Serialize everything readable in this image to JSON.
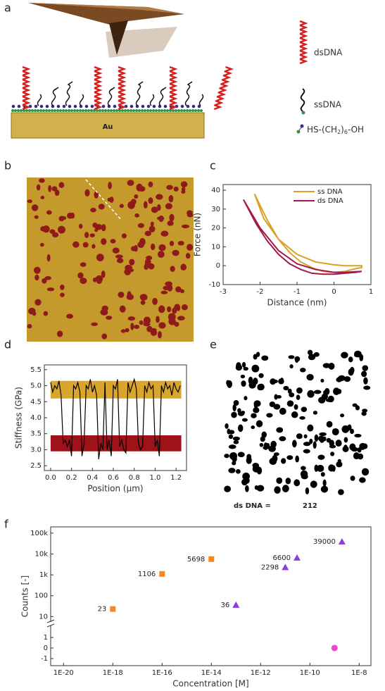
{
  "panel_labels": [
    "a",
    "b",
    "c",
    "d",
    "e",
    "f"
  ],
  "diagram": {
    "substrate": "Au",
    "legend": [
      "dsDNA",
      "ssDNA"
    ],
    "linker": [
      "HS-(CH",
      "2",
      ")",
      "6",
      "-OH"
    ]
  },
  "image_e": {
    "count_label": "ds DNA =",
    "count": 212
  },
  "chart_data": [
    {
      "type": "line",
      "xlabel": "Distance (nm)",
      "ylabel": "Force (nN)",
      "xlim": [
        -3,
        1
      ],
      "ylim": [
        -10,
        43
      ],
      "xticks": [
        -3,
        -2,
        -1,
        0,
        1
      ],
      "yticks": [
        -10,
        0,
        10,
        20,
        30,
        40
      ],
      "legend": "upper right",
      "series": [
        {
          "name": "ss DNA",
          "color": "#dba127",
          "x": [
            -2.15,
            -1.8,
            -1.5,
            -1.2,
            -0.9,
            -0.6,
            -0.3,
            0,
            0.3,
            0.6,
            0.75,
            0.75,
            0.3,
            0,
            -0.5,
            -1,
            -1.5,
            -1.9,
            -2.15
          ],
          "values": [
            38,
            24,
            14,
            7,
            2,
            -1,
            -3,
            -3.5,
            -3,
            -1.5,
            -1,
            0,
            0,
            0.5,
            2,
            6,
            14,
            25,
            38
          ]
        },
        {
          "name": "ds DNA",
          "color": "#a3174d",
          "x": [
            -2.45,
            -2.1,
            -1.8,
            -1.5,
            -1.2,
            -0.9,
            -0.6,
            -0.3,
            0,
            0.3,
            0.6,
            0.75,
            0.75,
            0.3,
            0,
            -0.5,
            -1,
            -1.5,
            -2,
            -2.45
          ],
          "values": [
            35,
            22,
            13,
            6,
            1,
            -2,
            -4,
            -4.5,
            -4.5,
            -4,
            -3.5,
            -3,
            -3,
            -3.5,
            -3.5,
            -2,
            1,
            8,
            20,
            35
          ]
        }
      ]
    },
    {
      "type": "line",
      "xlabel": "Position (μm)",
      "ylabel": "Stiffness (GPa)",
      "xlim": [
        -0.06,
        1.3
      ],
      "ylim": [
        2.35,
        5.65
      ],
      "xticks": [
        {
          "value": 0,
          "label": "0.0"
        },
        0.2,
        0.4,
        0.6,
        0.8,
        {
          "value": 1,
          "label": "1.0"
        },
        1.2
      ],
      "yticks": [
        2.5,
        {
          "value": 3,
          "label": "3.0"
        },
        3.5,
        {
          "value": 4,
          "label": "4.0"
        },
        4.5,
        {
          "value": 5,
          "label": "5.0"
        },
        5.5
      ],
      "bands": [
        {
          "xmin": 0,
          "xmax": 1.25,
          "ymin": 4.6,
          "ymax": 5.15,
          "color": "#d9a52a"
        },
        {
          "xmin": 0,
          "xmax": 1.25,
          "ymin": 2.95,
          "ymax": 3.45,
          "color": "#a0121a"
        }
      ],
      "series": [
        {
          "color": "#000000",
          "x": [
            0,
            0.02,
            0.04,
            0.06,
            0.08,
            0.1,
            0.12,
            0.14,
            0.16,
            0.18,
            0.2,
            0.22,
            0.24,
            0.26,
            0.28,
            0.3,
            0.32,
            0.34,
            0.36,
            0.38,
            0.4,
            0.42,
            0.44,
            0.46,
            0.48,
            0.5,
            0.52,
            0.54,
            0.56,
            0.58,
            0.6,
            0.62,
            0.64,
            0.66,
            0.68,
            0.7,
            0.72,
            0.74,
            0.76,
            0.78,
            0.8,
            0.82,
            0.84,
            0.86,
            0.88,
            0.9,
            0.92,
            0.94,
            0.96,
            0.98,
            1,
            1.02,
            1.04,
            1.06,
            1.08,
            1.1,
            1.12,
            1.14,
            1.16,
            1.18,
            1.2,
            1.22,
            1.24
          ],
          "values": [
            5.1,
            4.8,
            5.0,
            4.9,
            5.15,
            4.7,
            3.2,
            3.3,
            3.1,
            3.3,
            2.8,
            5.0,
            4.9,
            5.1,
            4.8,
            2.8,
            3.2,
            5.0,
            4.9,
            5.2,
            4.8,
            5.0,
            4.7,
            2.7,
            3.2,
            3.0,
            5.1,
            3.0,
            3.3,
            2.8,
            5.0,
            4.9,
            5.2,
            3.1,
            3.3,
            3.0,
            2.9,
            5.1,
            4.8,
            5.0,
            5.2,
            4.9,
            3.2,
            3.0,
            3.1,
            5.0,
            4.8,
            5.1,
            4.9,
            5.0,
            3.1,
            3.3,
            2.8,
            5.0,
            4.8,
            5.1,
            4.9,
            5.0,
            4.7,
            5.1,
            4.9,
            4.8,
            5.0
          ]
        }
      ]
    },
    {
      "type": "scatter",
      "xlabel": "Concentration [M]",
      "ylabel": "Counts [-]",
      "xscale": "log",
      "yscale": "log",
      "xlim": [
        3e-21,
        3e-08
      ],
      "ylim": [
        3.2,
        200000
      ],
      "ylim_low": [
        -1.67,
        2
      ],
      "xticks": [
        {
          "value": 1e-20,
          "label": "1E-20"
        },
        {
          "value": 1e-18,
          "label": "1E-18"
        },
        {
          "value": 1e-16,
          "label": "1E-16"
        },
        {
          "value": 1e-14,
          "label": "1E-14"
        },
        {
          "value": 1e-12,
          "label": "1E-12"
        },
        {
          "value": 1e-10,
          "label": "1E-10"
        },
        {
          "value": 1e-08,
          "label": "1E-8"
        }
      ],
      "yticks": [
        10,
        100,
        {
          "value": 1000,
          "label": "1k"
        },
        {
          "value": 10000,
          "label": "10k"
        },
        {
          "value": 100000,
          "label": "100k"
        }
      ],
      "yticks_low": [
        -1,
        0,
        1
      ],
      "series": [
        {
          "color": "#f5891f",
          "marker": "square",
          "show_labels": true,
          "x": [
            1e-18,
            1e-16,
            1e-14
          ],
          "values": [
            23,
            1106,
            5698
          ]
        },
        {
          "color": "#8b3fd9",
          "marker": "triangle",
          "show_labels": true,
          "x": [
            1e-13,
            1e-11,
            3e-11,
            2e-09
          ],
          "values": [
            36,
            2298,
            6600,
            39000
          ]
        },
        {
          "color": "#ee44cc",
          "marker": "circle",
          "show_labels": false,
          "x": [
            1e-09
          ],
          "values": [
            0
          ]
        }
      ]
    }
  ]
}
